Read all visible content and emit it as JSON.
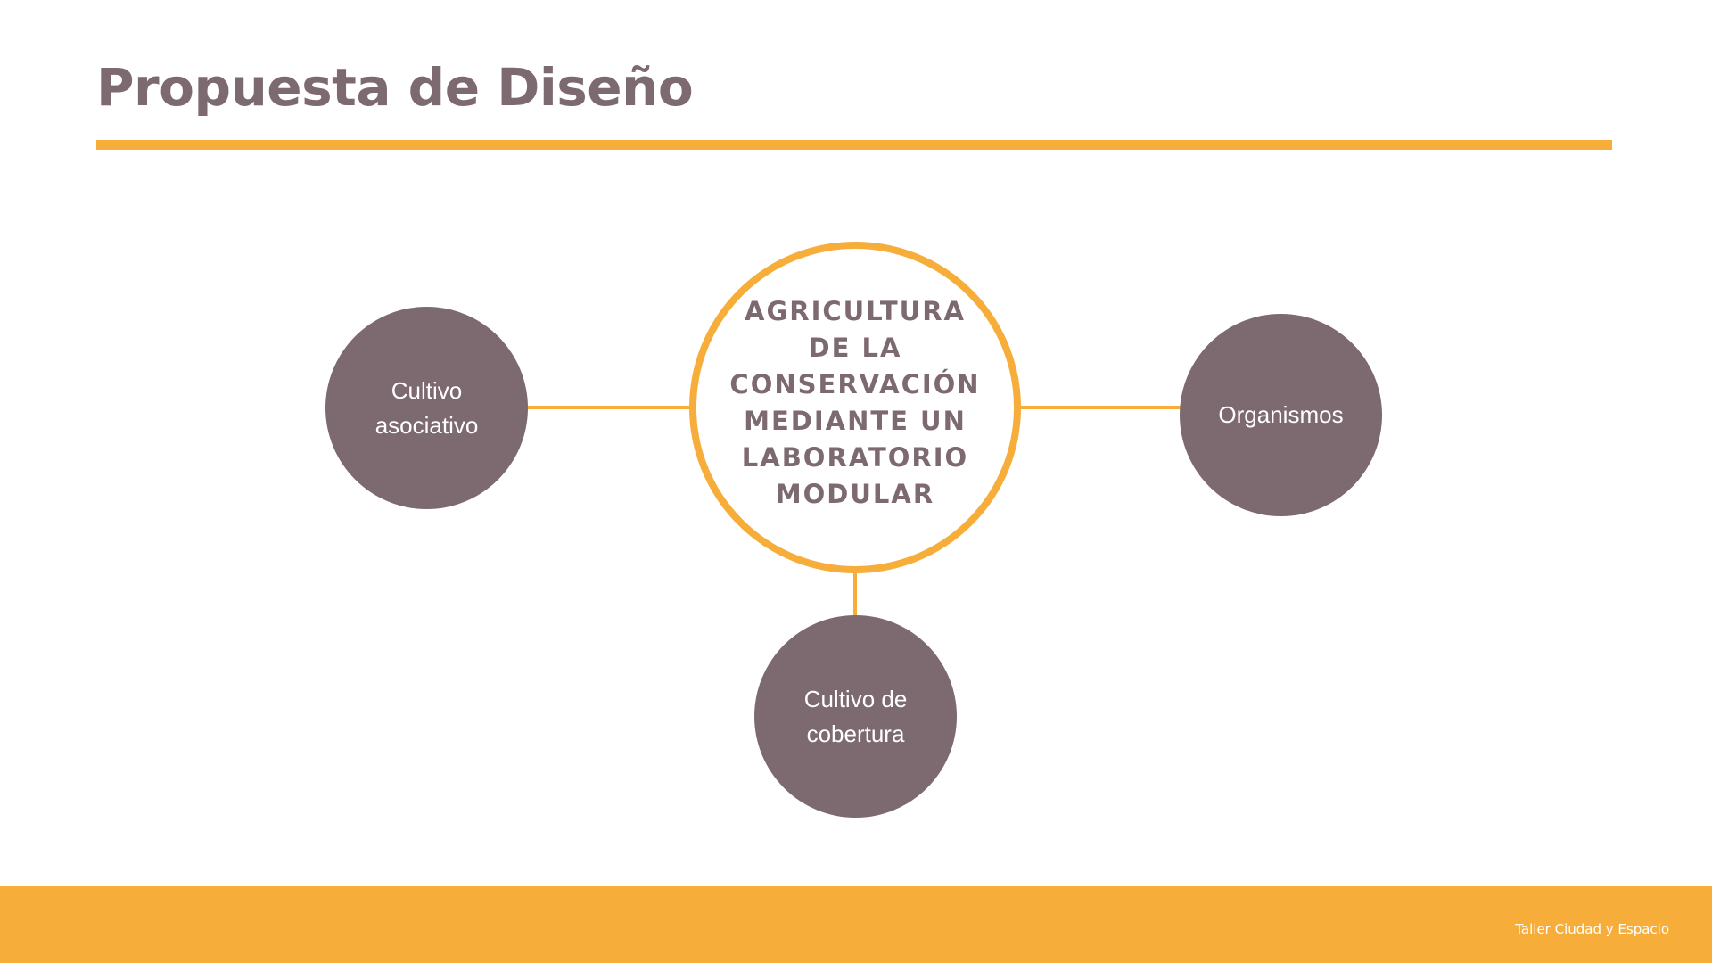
{
  "slide": {
    "title": "Propuesta de Diseño",
    "footer": "Taller Ciudad y Espacio"
  },
  "diagram": {
    "center": {
      "label": "AGRICULTURA DE LA CONSERVACIÓN MEDIANTE UN LABORATORIO MODULAR"
    },
    "nodes": [
      {
        "id": "left",
        "label": "Cultivo asociativo"
      },
      {
        "id": "right",
        "label": "Organismos"
      },
      {
        "id": "bottom",
        "label": "Cultivo de cobertura"
      }
    ]
  },
  "colors": {
    "accent": "#F7AD3A",
    "node_fill": "#7D6970",
    "text_dark": "#7D6970",
    "background": "#FFFFFF"
  }
}
